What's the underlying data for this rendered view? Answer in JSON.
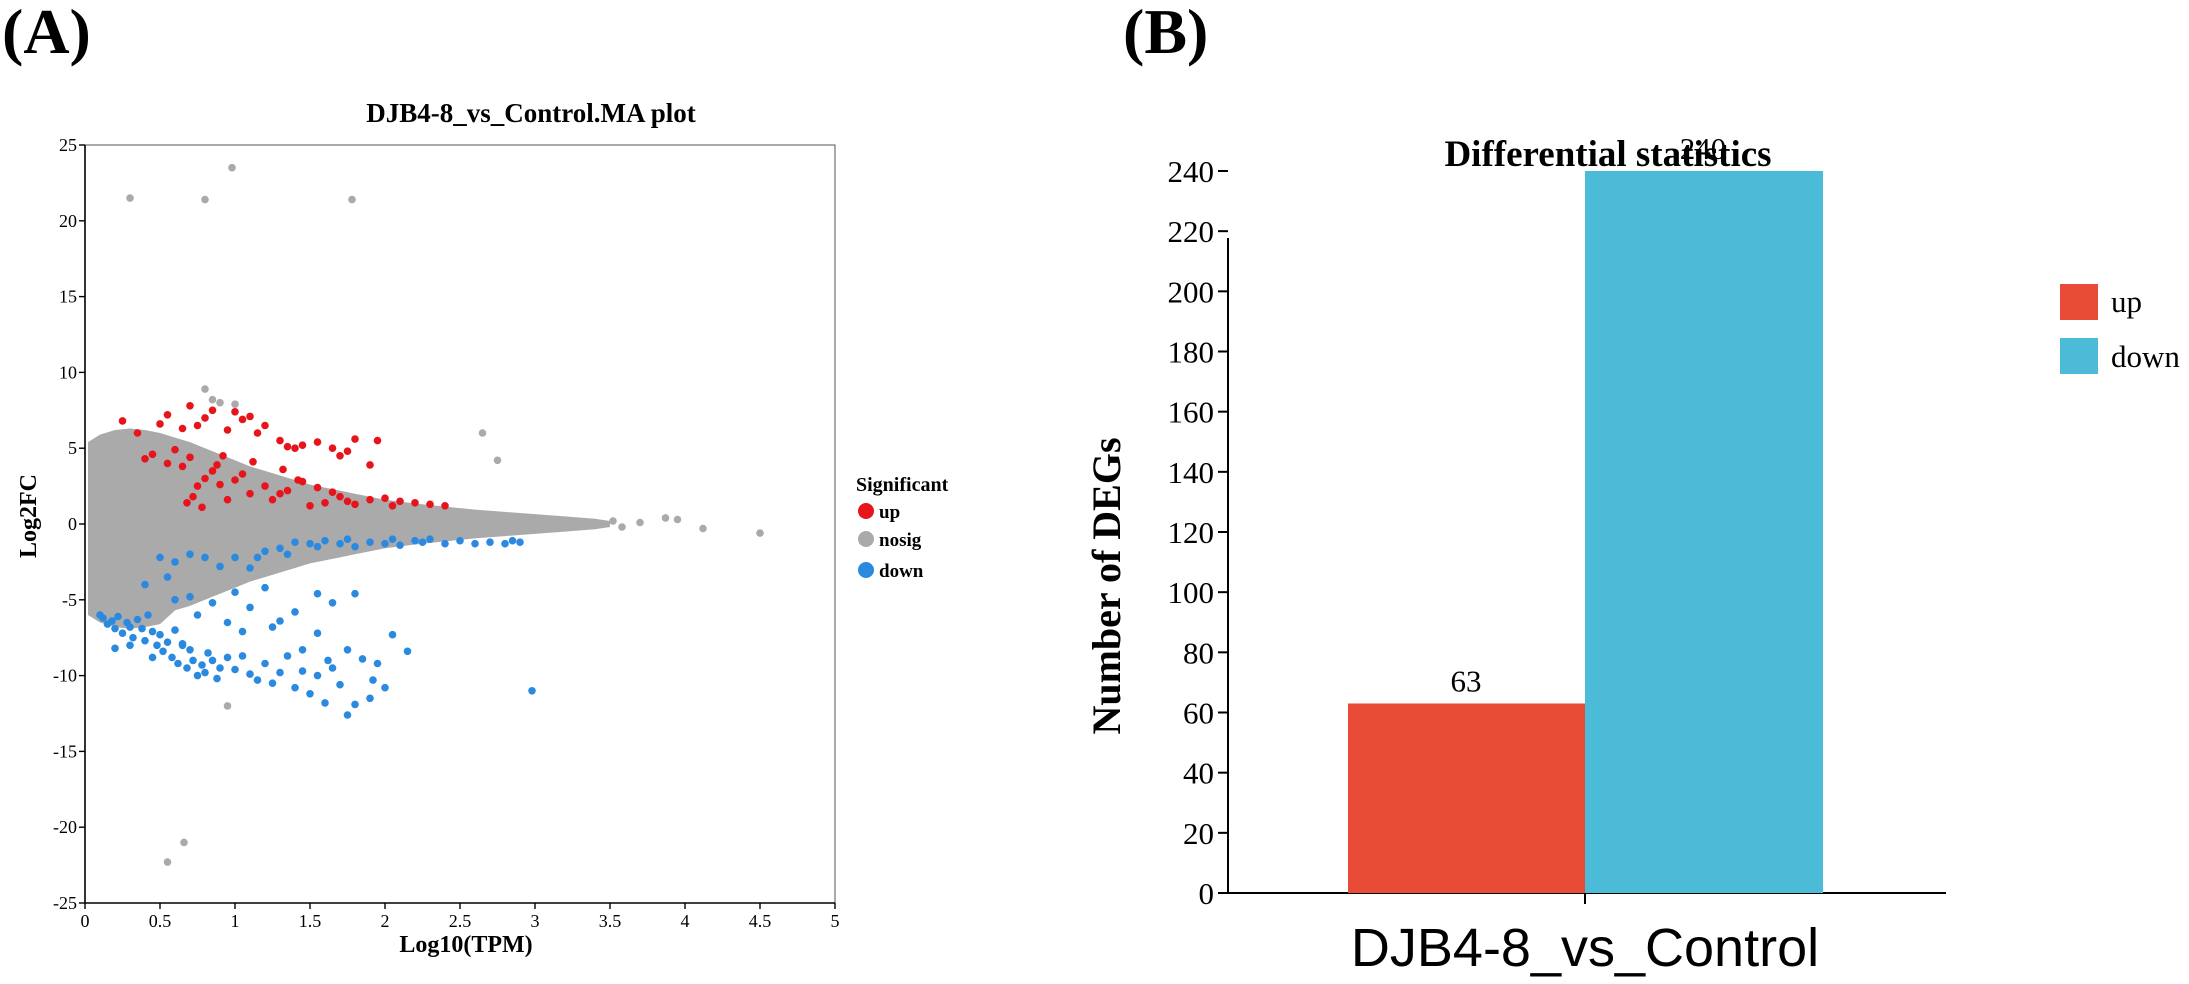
{
  "panels": {
    "a_label": "(A)",
    "b_label": "(B)"
  },
  "chart_data": [
    {
      "type": "scatter",
      "title": "DJB4-8_vs_Control.MA plot",
      "xlabel": "Log10(TPM)",
      "ylabel": "Log2FC",
      "xlim": [
        0,
        5
      ],
      "ylim": [
        -25,
        25
      ],
      "x_ticks": [
        0,
        0.5,
        1,
        1.5,
        2,
        2.5,
        3,
        3.5,
        4,
        4.5,
        5
      ],
      "x_tick_labels": [
        "0",
        "0.5",
        "1",
        "1.5",
        "2",
        "2.5",
        "3",
        "3.5",
        "4",
        "4.5",
        "5"
      ],
      "y_ticks": [
        25,
        20,
        15,
        10,
        5,
        0,
        -5,
        -10,
        -15,
        -20,
        -25
      ],
      "y_tick_labels": [
        "25",
        "20",
        "15",
        "10",
        "5",
        "0",
        "-5",
        "-10",
        "-15",
        "-20",
        "-25"
      ],
      "grid": false,
      "legend": {
        "title": "Significant",
        "position": "right",
        "entries": [
          {
            "name": "up",
            "color": "#e8141b"
          },
          {
            "name": "nosig",
            "color": "#aaaaaa"
          },
          {
            "name": "down",
            "color": "#2b8ae0"
          }
        ]
      },
      "series": [
        {
          "name": "up",
          "color": "#e8141b",
          "points": [
            [
              0.25,
              6.8
            ],
            [
              0.35,
              6.0
            ],
            [
              0.5,
              6.6
            ],
            [
              0.55,
              7.2
            ],
            [
              0.65,
              6.3
            ],
            [
              0.7,
              7.8
            ],
            [
              0.75,
              6.5
            ],
            [
              0.8,
              7.0
            ],
            [
              0.85,
              7.5
            ],
            [
              0.95,
              6.2
            ],
            [
              1.0,
              7.4
            ],
            [
              1.05,
              6.9
            ],
            [
              1.1,
              7.1
            ],
            [
              1.15,
              6.0
            ],
            [
              1.2,
              6.5
            ],
            [
              1.3,
              5.5
            ],
            [
              1.35,
              5.1
            ],
            [
              1.4,
              5.0
            ],
            [
              1.45,
              5.2
            ],
            [
              1.55,
              5.4
            ],
            [
              1.65,
              5.0
            ],
            [
              1.7,
              4.5
            ],
            [
              1.75,
              4.8
            ],
            [
              1.8,
              5.6
            ],
            [
              1.9,
              3.9
            ],
            [
              1.95,
              5.5
            ],
            [
              0.4,
              4.3
            ],
            [
              0.45,
              4.6
            ],
            [
              0.55,
              4.0
            ],
            [
              0.6,
              4.9
            ],
            [
              0.65,
              3.8
            ],
            [
              0.7,
              4.4
            ],
            [
              0.75,
              2.5
            ],
            [
              0.8,
              3.0
            ],
            [
              0.85,
              3.5
            ],
            [
              0.9,
              2.6
            ],
            [
              0.95,
              1.6
            ],
            [
              1.0,
              2.9
            ],
            [
              1.05,
              3.3
            ],
            [
              1.1,
              2.0
            ],
            [
              1.2,
              2.5
            ],
            [
              1.25,
              1.6
            ],
            [
              1.3,
              2.0
            ],
            [
              1.35,
              2.2
            ],
            [
              1.45,
              2.8
            ],
            [
              1.5,
              1.2
            ],
            [
              1.55,
              2.4
            ],
            [
              1.6,
              1.4
            ],
            [
              1.65,
              2.1
            ],
            [
              1.7,
              1.8
            ],
            [
              1.75,
              1.5
            ],
            [
              1.8,
              1.3
            ],
            [
              1.9,
              1.6
            ],
            [
              2.0,
              1.7
            ],
            [
              2.05,
              1.2
            ],
            [
              2.1,
              1.5
            ],
            [
              2.2,
              1.4
            ],
            [
              2.3,
              1.3
            ],
            [
              2.4,
              1.2
            ],
            [
              0.68,
              1.4
            ],
            [
              0.72,
              1.8
            ],
            [
              0.78,
              1.1
            ],
            [
              0.88,
              3.9
            ],
            [
              0.92,
              4.5
            ],
            [
              1.12,
              4.1
            ],
            [
              1.32,
              3.6
            ],
            [
              1.42,
              2.9
            ]
          ]
        },
        {
          "name": "nosig",
          "color": "#aaaaaa",
          "points": [
            [
              0.3,
              21.5
            ],
            [
              0.8,
              21.4
            ],
            [
              0.98,
              23.5
            ],
            [
              1.78,
              21.4
            ],
            [
              0.55,
              -22.3
            ],
            [
              0.66,
              -21.0
            ],
            [
              3.7,
              0.1
            ],
            [
              3.87,
              0.4
            ],
            [
              3.95,
              0.3
            ],
            [
              4.12,
              -0.3
            ],
            [
              4.5,
              -0.6
            ],
            [
              3.58,
              -0.2
            ],
            [
              3.52,
              0.2
            ],
            [
              0.8,
              8.9
            ],
            [
              0.85,
              8.2
            ],
            [
              0.9,
              8.0
            ],
            [
              1.0,
              7.9
            ],
            [
              2.65,
              6.0
            ],
            [
              2.75,
              4.2
            ],
            [
              0.95,
              -12.0
            ]
          ]
        },
        {
          "name": "down",
          "color": "#2b8ae0",
          "points": [
            [
              0.1,
              -6.0
            ],
            [
              0.12,
              -6.2
            ],
            [
              0.15,
              -6.6
            ],
            [
              0.18,
              -6.4
            ],
            [
              0.2,
              -6.9
            ],
            [
              0.22,
              -6.1
            ],
            [
              0.25,
              -7.2
            ],
            [
              0.28,
              -6.5
            ],
            [
              0.3,
              -6.8
            ],
            [
              0.32,
              -7.5
            ],
            [
              0.35,
              -6.3
            ],
            [
              0.38,
              -6.9
            ],
            [
              0.4,
              -7.7
            ],
            [
              0.42,
              -6.0
            ],
            [
              0.45,
              -7.1
            ],
            [
              0.48,
              -8.0
            ],
            [
              0.5,
              -7.3
            ],
            [
              0.52,
              -8.4
            ],
            [
              0.55,
              -7.8
            ],
            [
              0.58,
              -8.8
            ],
            [
              0.6,
              -7.0
            ],
            [
              0.62,
              -9.2
            ],
            [
              0.65,
              -8.0
            ],
            [
              0.68,
              -9.5
            ],
            [
              0.7,
              -8.3
            ],
            [
              0.72,
              -9.0
            ],
            [
              0.75,
              -10.0
            ],
            [
              0.78,
              -9.3
            ],
            [
              0.8,
              -9.8
            ],
            [
              0.82,
              -8.5
            ],
            [
              0.85,
              -9.0
            ],
            [
              0.88,
              -10.2
            ],
            [
              0.9,
              -9.5
            ],
            [
              0.95,
              -8.8
            ],
            [
              1.0,
              -9.6
            ],
            [
              1.05,
              -8.7
            ],
            [
              1.1,
              -9.9
            ],
            [
              1.15,
              -10.3
            ],
            [
              1.2,
              -9.2
            ],
            [
              1.25,
              -10.5
            ],
            [
              1.3,
              -9.8
            ],
            [
              1.4,
              -10.8
            ],
            [
              1.45,
              -9.7
            ],
            [
              1.5,
              -11.2
            ],
            [
              1.55,
              -10.0
            ],
            [
              1.6,
              -11.8
            ],
            [
              1.65,
              -9.5
            ],
            [
              1.7,
              -10.6
            ],
            [
              1.75,
              -12.6
            ],
            [
              1.8,
              -11.9
            ],
            [
              1.9,
              -11.5
            ],
            [
              1.92,
              -10.3
            ],
            [
              1.95,
              -9.2
            ],
            [
              2.0,
              -10.8
            ],
            [
              2.15,
              -8.4
            ],
            [
              2.98,
              -11.0
            ],
            [
              0.4,
              -4.0
            ],
            [
              0.55,
              -3.5
            ],
            [
              0.6,
              -5.0
            ],
            [
              0.7,
              -4.8
            ],
            [
              0.75,
              -6.0
            ],
            [
              0.85,
              -5.2
            ],
            [
              0.95,
              -6.5
            ],
            [
              1.0,
              -4.5
            ],
            [
              1.1,
              -5.5
            ],
            [
              1.2,
              -4.2
            ],
            [
              1.3,
              -6.4
            ],
            [
              1.4,
              -5.8
            ],
            [
              1.55,
              -7.2
            ],
            [
              1.65,
              -5.2
            ],
            [
              1.8,
              -4.6
            ],
            [
              1.55,
              -4.6
            ],
            [
              0.5,
              -2.2
            ],
            [
              0.6,
              -2.5
            ],
            [
              0.7,
              -2.0
            ],
            [
              0.8,
              -2.2
            ],
            [
              0.9,
              -2.8
            ],
            [
              1.0,
              -2.2
            ],
            [
              1.1,
              -2.9
            ],
            [
              1.15,
              -2.2
            ],
            [
              1.2,
              -1.8
            ],
            [
              1.3,
              -1.6
            ],
            [
              1.35,
              -2.0
            ],
            [
              1.4,
              -1.2
            ],
            [
              1.5,
              -1.3
            ],
            [
              1.55,
              -1.5
            ],
            [
              1.6,
              -1.1
            ],
            [
              1.7,
              -1.3
            ],
            [
              1.75,
              -1.0
            ],
            [
              1.8,
              -1.5
            ],
            [
              1.9,
              -1.2
            ],
            [
              2.0,
              -1.3
            ],
            [
              2.05,
              -1.0
            ],
            [
              2.1,
              -1.4
            ],
            [
              2.2,
              -1.1
            ],
            [
              2.25,
              -1.2
            ],
            [
              2.3,
              -1.0
            ],
            [
              2.4,
              -1.3
            ],
            [
              2.5,
              -1.1
            ],
            [
              2.6,
              -1.3
            ],
            [
              2.7,
              -1.2
            ],
            [
              2.8,
              -1.3
            ],
            [
              2.85,
              -1.1
            ],
            [
              2.9,
              -1.2
            ],
            [
              0.2,
              -8.2
            ],
            [
              0.3,
              -8.0
            ],
            [
              0.45,
              -8.8
            ],
            [
              0.65,
              -7.9
            ],
            [
              1.05,
              -7.1
            ],
            [
              1.35,
              -8.7
            ],
            [
              1.45,
              -8.3
            ],
            [
              1.62,
              -9.0
            ],
            [
              1.75,
              -8.3
            ],
            [
              1.85,
              -8.9
            ],
            [
              2.05,
              -7.3
            ],
            [
              1.25,
              -6.8
            ]
          ]
        }
      ]
    },
    {
      "type": "bar",
      "title": "Differential statistics",
      "categories": [
        "DJB4-8_vs_Control"
      ],
      "series": [
        {
          "name": "up",
          "values": [
            63
          ],
          "color": "#e84c36"
        },
        {
          "name": "down",
          "values": [
            240
          ],
          "color": "#4bbbd7"
        }
      ],
      "value_labels": [
        "63",
        "240"
      ],
      "xlabel": "",
      "ylabel": "Number of DEGs",
      "ylim": [
        0,
        240
      ],
      "y_ticks": [
        0,
        20,
        40,
        60,
        80,
        100,
        120,
        140,
        160,
        180,
        200,
        220,
        240
      ],
      "y_tick_labels": [
        "0",
        "20",
        "40",
        "60",
        "80",
        "100",
        "120",
        "140",
        "160",
        "180",
        "200",
        "220",
        "240"
      ],
      "grid": false,
      "legend": {
        "position": "right",
        "entries": [
          {
            "name": "up",
            "color": "#e84c36"
          },
          {
            "name": "down",
            "color": "#4bbbd7"
          }
        ]
      }
    }
  ]
}
